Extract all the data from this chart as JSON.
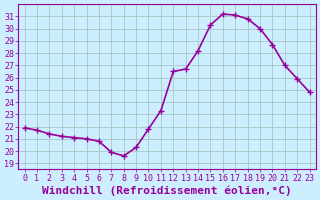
{
  "x": [
    0,
    1,
    2,
    3,
    4,
    5,
    6,
    7,
    8,
    9,
    10,
    11,
    12,
    13,
    14,
    15,
    16,
    17,
    18,
    19,
    20,
    21,
    22,
    23
  ],
  "y": [
    21.9,
    21.7,
    21.4,
    21.2,
    21.1,
    21.0,
    20.8,
    19.9,
    19.6,
    20.3,
    21.8,
    23.3,
    26.5,
    26.7,
    28.2,
    30.3,
    31.2,
    31.1,
    30.8,
    30.0,
    28.7,
    27.0,
    25.9,
    24.8
  ],
  "line_color": "#990099",
  "marker": "+",
  "markersize": 5,
  "linewidth": 1.2,
  "xlabel": "Windchill (Refroidissement éolien,°C)",
  "xlabel_fontsize": 8,
  "ylim": [
    18.5,
    32
  ],
  "xlim": [
    -0.5,
    23.5
  ],
  "yticks": [
    19,
    20,
    21,
    22,
    23,
    24,
    25,
    26,
    27,
    28,
    29,
    30,
    31
  ],
  "xticks": [
    0,
    1,
    2,
    3,
    4,
    5,
    6,
    7,
    8,
    9,
    10,
    11,
    12,
    13,
    14,
    15,
    16,
    17,
    18,
    19,
    20,
    21,
    22,
    23
  ],
  "bg_color": "#cceeff",
  "grid_color": "#aacccc",
  "tick_fontsize": 6
}
